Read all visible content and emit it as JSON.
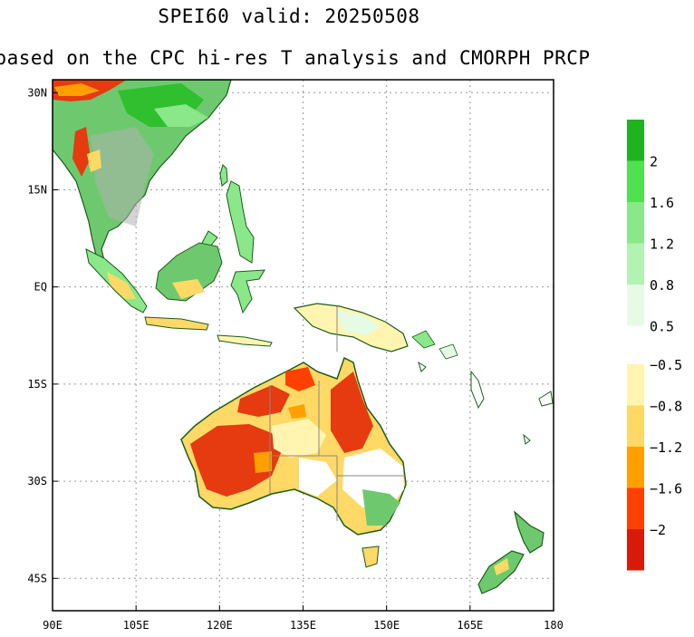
{
  "title": {
    "line1": "SPEI60   valid: 20250508",
    "line2": "based on the CPC hi-res T analysis and CMORPH PRCP"
  },
  "map": {
    "lon_range": [
      90,
      180
    ],
    "lat_range": [
      -50,
      32
    ],
    "grid": true,
    "x_ticks": [
      "90E",
      "105E",
      "120E",
      "135E",
      "150E",
      "165E",
      "180"
    ],
    "y_ticks": [
      "30N",
      "15N",
      "EQ",
      "15S",
      "30S",
      "45S"
    ]
  },
  "colorbar": {
    "wet": {
      "colors": [
        "#1fb41f",
        "#50e050",
        "#8ae88a",
        "#b2f2b2",
        "#e5fbe5"
      ],
      "labels": [
        "2",
        "1.6",
        "1.2",
        "0.8",
        "0.5"
      ]
    },
    "dry": {
      "colors": [
        "#fff5b0",
        "#ffd966",
        "#ffa000",
        "#ff4000",
        "#d81a0a"
      ],
      "labels": [
        "−0.5",
        "−0.8",
        "−1.2",
        "−1.6",
        "−2"
      ]
    }
  }
}
